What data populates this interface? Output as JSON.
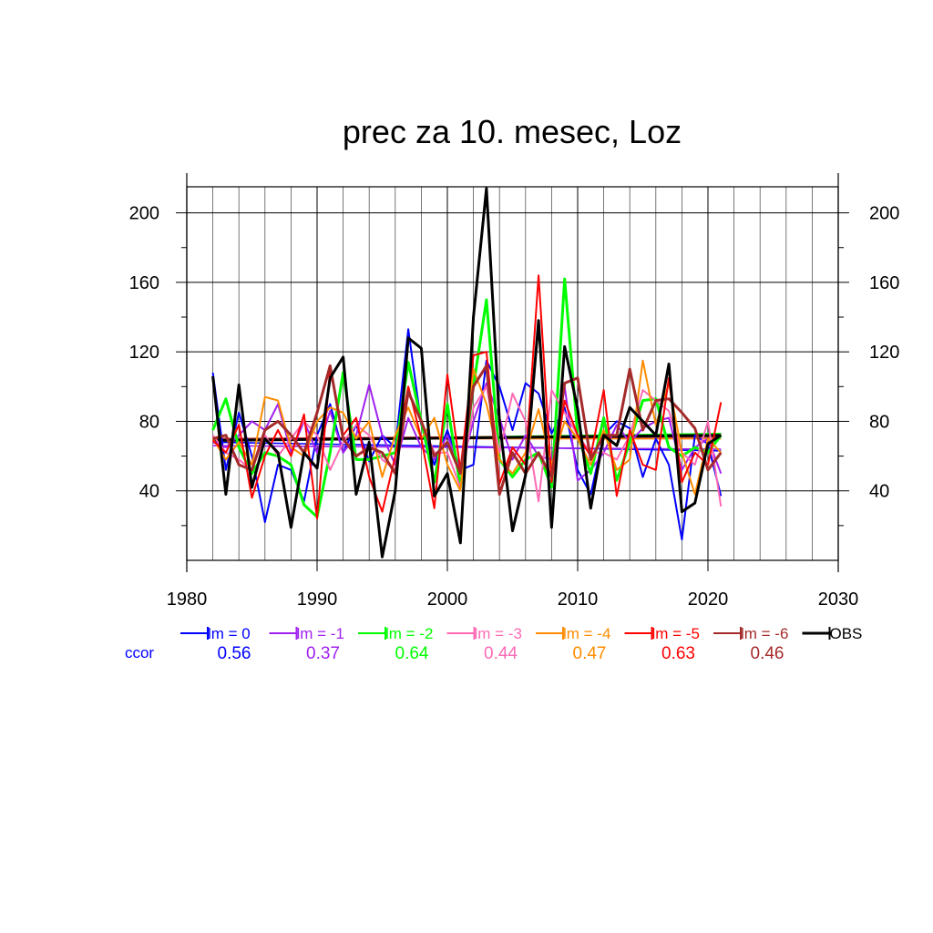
{
  "chart_data": {
    "type": "line",
    "title": "prec za 10. mesec, Loz",
    "xlabel": "",
    "ylabel": "",
    "xlim": [
      1980,
      2030
    ],
    "ylim": [
      0,
      215
    ],
    "x_ticks": [
      1980,
      1990,
      2000,
      2010,
      2020,
      2030
    ],
    "y_ticks": [
      40,
      80,
      120,
      160,
      200
    ],
    "grid": true,
    "legend_position": "bottom",
    "ccor_label": "ccor",
    "x": [
      1982,
      1983,
      1984,
      1985,
      1986,
      1987,
      1988,
      1989,
      1990,
      1991,
      1992,
      1993,
      1994,
      1995,
      1996,
      1997,
      1998,
      1999,
      2000,
      2001,
      2002,
      2003,
      2004,
      2005,
      2006,
      2007,
      2008,
      2009,
      2010,
      2011,
      2012,
      2013,
      2014,
      2015,
      2016,
      2017,
      2018,
      2019,
      2020,
      2021
    ],
    "series": [
      {
        "name": "lm = 0",
        "color": "#0000ff",
        "width": 2,
        "ccor": "0.56",
        "values": [
          108,
          52,
          85,
          60,
          22,
          55,
          52,
          34,
          72,
          90,
          62,
          78,
          57,
          72,
          65,
          133,
          78,
          55,
          75,
          52,
          55,
          115,
          100,
          75,
          102,
          96,
          73,
          88,
          52,
          38,
          72,
          80,
          76,
          48,
          70,
          55,
          12,
          72,
          67,
          37
        ],
        "trend": [
          68,
          63
        ]
      },
      {
        "name": "lm = -1",
        "color": "#a020f0",
        "width": 2,
        "ccor": "0.37",
        "values": [
          68,
          65,
          72,
          80,
          75,
          90,
          62,
          80,
          62,
          86,
          62,
          72,
          101,
          72,
          55,
          82,
          65,
          58,
          72,
          52,
          80,
          102,
          82,
          58,
          72,
          60,
          58,
          100,
          46,
          52,
          62,
          78,
          68,
          76,
          80,
          82,
          52,
          65,
          70,
          50
        ],
        "trend": [
          66,
          64
        ]
      },
      {
        "name": "lm = -2",
        "color": "#00ff00",
        "width": 3,
        "ccor": "0.64",
        "values": [
          75,
          93,
          65,
          50,
          62,
          60,
          55,
          32,
          25,
          62,
          108,
          58,
          58,
          60,
          62,
          114,
          80,
          45,
          90,
          42,
          100,
          150,
          58,
          48,
          58,
          62,
          42,
          162,
          72,
          50,
          82,
          46,
          68,
          92,
          93,
          65,
          60,
          65,
          62,
          72
        ],
        "trend": [
          69,
          73
        ]
      },
      {
        "name": "lm = -3",
        "color": "#ff69b4",
        "width": 2,
        "ccor": "0.44",
        "values": [
          72,
          62,
          58,
          52,
          72,
          60,
          70,
          80,
          72,
          52,
          68,
          78,
          72,
          58,
          52,
          98,
          80,
          62,
          62,
          42,
          88,
          100,
          62,
          96,
          80,
          34,
          98,
          85,
          72,
          62,
          62,
          58,
          72,
          98,
          92,
          86,
          62,
          55,
          80,
          31
        ],
        "trend": [
          70,
          70
        ]
      },
      {
        "name": "lm = -4",
        "color": "#ff8c00",
        "width": 2,
        "ccor": "0.47",
        "values": [
          70,
          58,
          68,
          55,
          94,
          92,
          65,
          60,
          80,
          88,
          85,
          70,
          80,
          48,
          72,
          88,
          70,
          82,
          55,
          40,
          110,
          90,
          58,
          50,
          62,
          87,
          55,
          80,
          70,
          55,
          75,
          52,
          58,
          115,
          78,
          102,
          62,
          38,
          70,
          62
        ],
        "trend": [
          70,
          70
        ]
      },
      {
        "name": "lm = -5",
        "color": "#ff0000",
        "width": 2,
        "ccor": "0.63",
        "values": [
          69,
          62,
          78,
          36,
          60,
          75,
          60,
          84,
          24,
          110,
          72,
          82,
          48,
          28,
          60,
          100,
          70,
          30,
          107,
          52,
          118,
          120,
          44,
          65,
          55,
          164,
          45,
          92,
          72,
          60,
          98,
          37,
          75,
          55,
          52,
          105,
          45,
          62,
          55,
          91
        ],
        "trend": [
          70,
          72
        ]
      },
      {
        "name": "lm = -6",
        "color": "#a52a2a",
        "width": 3,
        "ccor": "0.46",
        "values": [
          70,
          72,
          55,
          52,
          75,
          80,
          72,
          62,
          85,
          112,
          70,
          60,
          65,
          62,
          50,
          97,
          80,
          60,
          68,
          50,
          100,
          112,
          38,
          62,
          50,
          62,
          48,
          102,
          105,
          58,
          72,
          72,
          110,
          75,
          92,
          93,
          85,
          76,
          52,
          62
        ],
        "trend": [
          70,
          71
        ]
      },
      {
        "name": "OBS",
        "color": "#000000",
        "width": 3,
        "ccor": "",
        "values": [
          106,
          38,
          101,
          42,
          70,
          62,
          19,
          62,
          53,
          105,
          117,
          38,
          68,
          2,
          40,
          128,
          122,
          37,
          50,
          10,
          140,
          214,
          80,
          17,
          49,
          138,
          19,
          123,
          87,
          30,
          72,
          66,
          88,
          80,
          72,
          113,
          28,
          33,
          67,
          72
        ],
        "trend": [
          69,
          72
        ]
      }
    ]
  }
}
